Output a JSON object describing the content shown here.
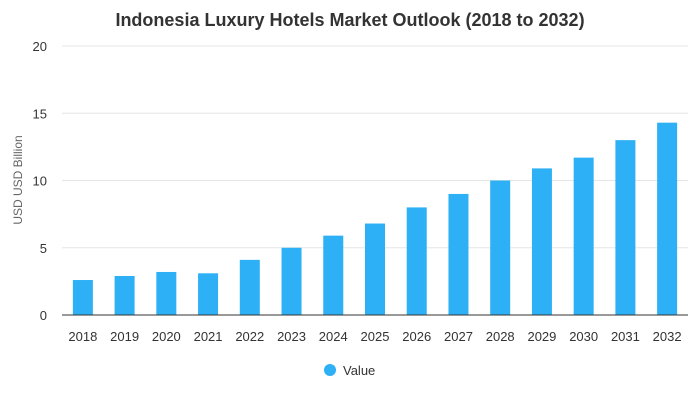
{
  "chart_data": {
    "type": "bar",
    "title": "Indonesia Luxury Hotels Market Outlook (2018 to 2032)",
    "xlabel": "",
    "ylabel": "USD USD Billion",
    "ylim": [
      0,
      20
    ],
    "yticks": [
      0,
      5,
      10,
      15,
      20
    ],
    "categories": [
      "2018",
      "2019",
      "2020",
      "2021",
      "2022",
      "2023",
      "2024",
      "2025",
      "2026",
      "2027",
      "2028",
      "2029",
      "2030",
      "2031",
      "2032"
    ],
    "series": [
      {
        "name": "Value",
        "color": "#2db0f5",
        "values": [
          2.6,
          2.9,
          3.2,
          3.1,
          4.1,
          5.0,
          5.9,
          6.8,
          8.0,
          9.0,
          10.0,
          10.9,
          11.7,
          13.0,
          14.3
        ]
      }
    ],
    "grid": true,
    "legend": "bottom-center"
  }
}
